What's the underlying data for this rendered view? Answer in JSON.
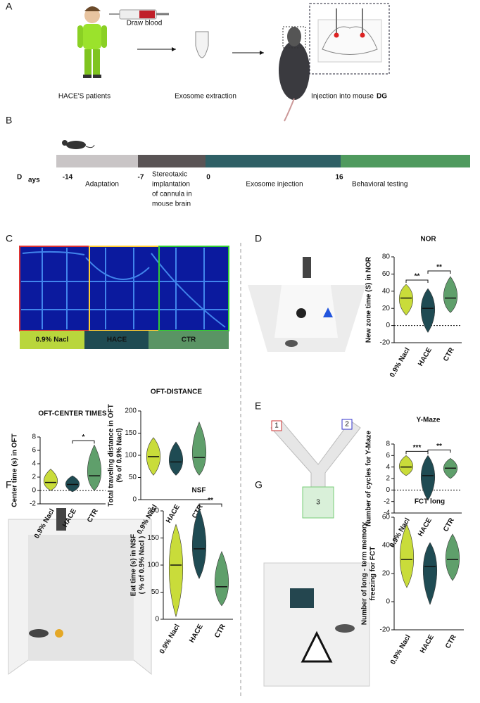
{
  "panels": [
    "A",
    "B",
    "C",
    "D",
    "E",
    "F",
    "G"
  ],
  "figure_a": {
    "draw": "Draw blood",
    "patients": "HACE'S patients",
    "extraction": "Exosome extraction",
    "injection": "Injection into mouse",
    "region": "DG"
  },
  "timeline": {
    "big": "D",
    "small": "ays",
    "days": [
      "-14",
      "-7",
      "0",
      "16"
    ],
    "phases": [
      "Adaptation",
      [
        "Stereotaxic",
        "implantation",
        "of cannula in",
        "mouse brain"
      ],
      "Exosome injection",
      "Behavioral testing"
    ]
  },
  "heatmap": {
    "labels": [
      "0.9% Nacl",
      "HACE",
      "CTR"
    ]
  },
  "maze": [
    "1",
    "2",
    "3"
  ],
  "chart_data": [
    {
      "type": "violin",
      "title": "OFT-CENTER TIMES",
      "ylabel": [
        "Center time (s) in OFT"
      ],
      "categories": [
        "0.9% Nacl",
        "HACE",
        "CTR"
      ],
      "values": [
        1.2,
        0.9,
        2.2
      ],
      "low": [
        0,
        -0.2,
        0
      ],
      "high": [
        3.2,
        2.2,
        6.8
      ],
      "colors": [
        "#c9dc3a",
        "#1f4b53",
        "#5f9f6b"
      ],
      "ylim": [
        -2,
        8
      ],
      "yticks": [
        -2,
        0,
        2,
        4,
        6,
        8
      ],
      "zero_line": true,
      "annotations": [
        {
          "text": "*",
          "pair": [
            1,
            2
          ]
        }
      ]
    },
    {
      "type": "violin",
      "title": "OFT-DISTANCE",
      "ylabel": [
        "Total traveling distance in OFT",
        "(% of 0.9% Nacl)"
      ],
      "categories": [
        "0.9% Nacl",
        "HACE",
        "CTR"
      ],
      "values": [
        97,
        85,
        95
      ],
      "low": [
        55,
        55,
        55
      ],
      "high": [
        140,
        130,
        175
      ],
      "colors": [
        "#c9dc3a",
        "#1f4b53",
        "#5f9f6b"
      ],
      "ylim": [
        0,
        200
      ],
      "yticks": [
        0,
        50,
        100,
        150,
        200
      ],
      "zero_line": false,
      "annotations": []
    },
    {
      "type": "violin",
      "title": "NOR",
      "ylabel": [
        "New zone time (S) in NOR"
      ],
      "categories": [
        "0.9% Nacl",
        "HACE",
        "CTR"
      ],
      "values": [
        32,
        20,
        32
      ],
      "low": [
        12,
        -8,
        15
      ],
      "high": [
        48,
        43,
        57
      ],
      "colors": [
        "#c9dc3a",
        "#1f4b53",
        "#5f9f6b"
      ],
      "ylim": [
        -20,
        80
      ],
      "yticks": [
        -20,
        0,
        20,
        40,
        60,
        80
      ],
      "zero_line": true,
      "annotations": [
        {
          "text": "**",
          "pair": [
            0,
            1
          ]
        },
        {
          "text": "**",
          "pair": [
            1,
            2
          ]
        }
      ]
    },
    {
      "type": "violin",
      "title": "Y-Maze",
      "ylabel": [
        "Number of cycles for Y-Maze"
      ],
      "categories": [
        "0.9% Nacl",
        "HACE",
        "CTR"
      ],
      "values": [
        4,
        2.5,
        3.8
      ],
      "low": [
        2.5,
        -1.8,
        2
      ],
      "high": [
        6,
        6,
        5.5
      ],
      "colors": [
        "#c9dc3a",
        "#1f4b53",
        "#5f9f6b"
      ],
      "ylim": [
        -4,
        8
      ],
      "yticks": [
        -4,
        -2,
        0,
        2,
        4,
        6,
        8
      ],
      "zero_line": true,
      "annotations": [
        {
          "text": "***",
          "pair": [
            0,
            1
          ]
        },
        {
          "text": "**",
          "pair": [
            1,
            2
          ]
        }
      ]
    },
    {
      "type": "violin",
      "title": "NSF",
      "ylabel": [
        "Eat time (s) in NSF",
        "( % of  0.9% Nacl )"
      ],
      "categories": [
        "0.9% Nacl",
        "HACE",
        "CTR"
      ],
      "values": [
        100,
        130,
        60
      ],
      "low": [
        5,
        75,
        25
      ],
      "high": [
        175,
        205,
        125
      ],
      "colors": [
        "#c9dc3a",
        "#1f4b53",
        "#5f9f6b"
      ],
      "ylim": [
        0,
        200
      ],
      "yticks": [
        0,
        50,
        100,
        150,
        200
      ],
      "zero_line": true,
      "annotations": [
        {
          "text": "**",
          "pair": [
            1,
            2
          ]
        }
      ]
    },
    {
      "type": "violin",
      "title": "FCT long",
      "ylabel": [
        "Number of long - term memory",
        "freezing for FCT"
      ],
      "categories": [
        "0.9% Nacl",
        "HACE",
        "CTR"
      ],
      "values": [
        30,
        25,
        30
      ],
      "low": [
        10,
        -2,
        15
      ],
      "high": [
        55,
        42,
        48
      ],
      "colors": [
        "#c9dc3a",
        "#1f4b53",
        "#5f9f6b"
      ],
      "ylim": [
        -20,
        60
      ],
      "yticks": [
        -20,
        0,
        20,
        40,
        60
      ],
      "zero_line": false,
      "annotations": []
    }
  ]
}
